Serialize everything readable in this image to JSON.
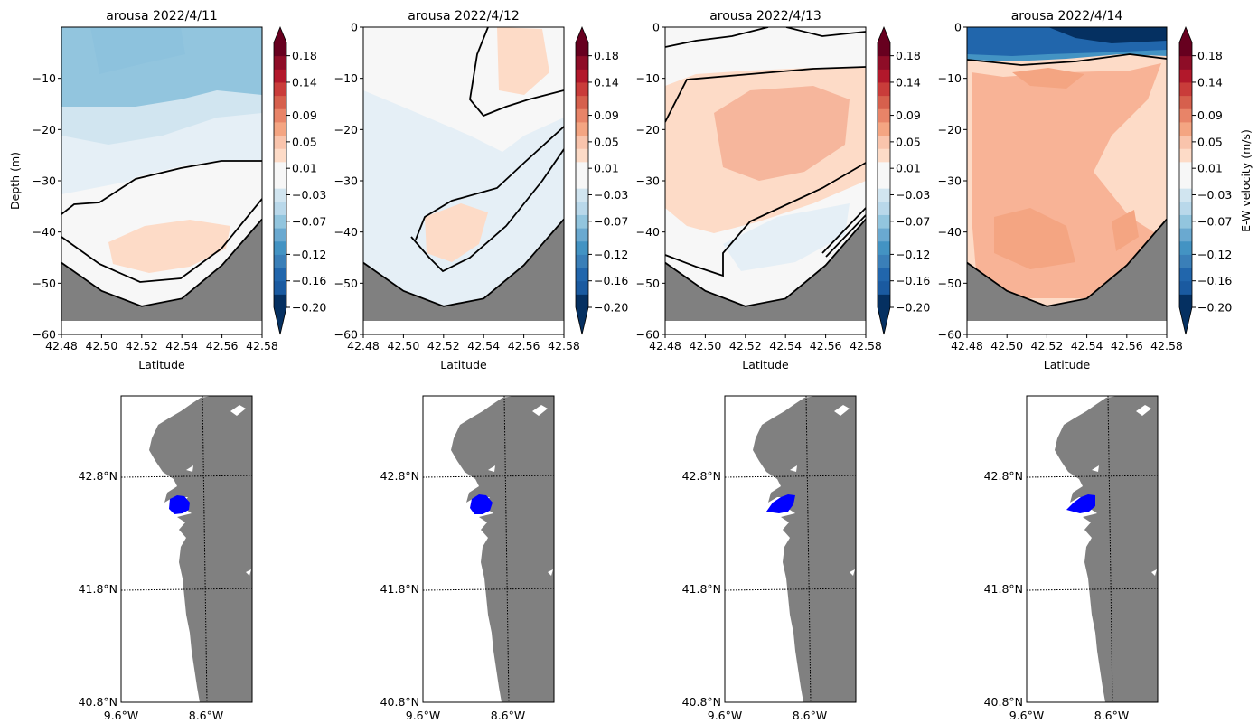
{
  "chart_data": [
    {
      "type": "heatmap",
      "title": "arousa 2022/4/11",
      "xlabel": "Latitude",
      "ylabel": "Depth (m)",
      "xlim": [
        42.48,
        42.58
      ],
      "ylim": [
        -60,
        0
      ],
      "xticks": [
        "42.48",
        "42.50",
        "42.52",
        "42.54",
        "42.56",
        "42.58"
      ],
      "yticks": [
        "−10",
        "−20",
        "−30",
        "−40",
        "−50",
        "−60"
      ],
      "colorbar": {
        "ticks": [
          "0.18",
          "0.14",
          "0.09",
          "0.05",
          "0.01",
          "−0.03",
          "−0.07",
          "−0.12",
          "−0.16",
          "−0.20"
        ],
        "range": [
          -0.2,
          0.2
        ]
      },
      "bathymetry": {
        "x": [
          42.48,
          42.5,
          42.52,
          42.54,
          42.56,
          42.58
        ],
        "depth": [
          -46,
          -51.5,
          -54.5,
          -53,
          -46.5,
          -37.5
        ]
      }
    },
    {
      "type": "heatmap",
      "title": "arousa 2022/4/12",
      "xlabel": "Latitude",
      "ylabel": "",
      "xlim": [
        42.48,
        42.58
      ],
      "ylim": [
        -60,
        0
      ],
      "xticks": [
        "42.48",
        "42.50",
        "42.52",
        "42.54",
        "42.56",
        "42.58"
      ],
      "yticks": [
        "0",
        "−10",
        "−20",
        "−30",
        "−40",
        "−50",
        "−60"
      ],
      "colorbar": {
        "ticks": [
          "0.18",
          "0.14",
          "0.09",
          "0.05",
          "0.01",
          "−0.03",
          "−0.07",
          "−0.12",
          "−0.16",
          "−0.20"
        ],
        "range": [
          -0.2,
          0.2
        ]
      },
      "bathymetry": {
        "x": [
          42.48,
          42.5,
          42.52,
          42.54,
          42.56,
          42.58
        ],
        "depth": [
          -46,
          -51.5,
          -54.5,
          -53,
          -46.5,
          -37.5
        ]
      }
    },
    {
      "type": "heatmap",
      "title": "arousa 2022/4/13",
      "xlabel": "Latitude",
      "ylabel": "",
      "xlim": [
        42.48,
        42.58
      ],
      "ylim": [
        -60,
        0
      ],
      "xticks": [
        "42.48",
        "42.50",
        "42.52",
        "42.54",
        "42.56",
        "42.58"
      ],
      "yticks": [
        "0",
        "−10",
        "−20",
        "−30",
        "−40",
        "−50",
        "−60"
      ],
      "colorbar": {
        "ticks": [
          "0.18",
          "0.14",
          "0.09",
          "0.05",
          "0.01",
          "−0.03",
          "−0.07",
          "−0.12",
          "−0.16",
          "−0.20"
        ],
        "range": [
          -0.2,
          0.2
        ]
      },
      "bathymetry": {
        "x": [
          42.48,
          42.5,
          42.52,
          42.54,
          42.56,
          42.58
        ],
        "depth": [
          -46,
          -51.5,
          -54.5,
          -53,
          -46.5,
          -37.5
        ]
      }
    },
    {
      "type": "heatmap",
      "title": "arousa 2022/4/14",
      "xlabel": "Latitude",
      "ylabel": "",
      "cbar_label": "E-W velocity (m/s)",
      "xlim": [
        42.48,
        42.58
      ],
      "ylim": [
        -60,
        0
      ],
      "xticks": [
        "42.48",
        "42.50",
        "42.52",
        "42.54",
        "42.56",
        "42.58"
      ],
      "yticks": [
        "0",
        "−10",
        "−20",
        "−30",
        "−40",
        "−50",
        "−60"
      ],
      "colorbar": {
        "ticks": [
          "0.18",
          "0.14",
          "0.09",
          "0.05",
          "0.01",
          "−0.03",
          "−0.07",
          "−0.12",
          "−0.16",
          "−0.20"
        ],
        "range": [
          -0.2,
          0.2
        ]
      },
      "bathymetry": {
        "x": [
          42.48,
          42.5,
          42.52,
          42.54,
          42.56,
          42.58
        ],
        "depth": [
          -46,
          -51.5,
          -54.5,
          -53,
          -46.5,
          -37.5
        ]
      }
    }
  ],
  "maps": {
    "lat_labels": [
      "42.8°N",
      "41.8°N",
      "40.8°N"
    ],
    "lon_labels": [
      "9.6°W",
      "8.6°W"
    ],
    "land_color": "#808080",
    "highlight_color": "#0000ff"
  },
  "colors": {
    "positive": [
      "#fddbc7",
      "#f4a582",
      "#d6604d",
      "#b2182b",
      "#67001f"
    ],
    "negative": [
      "#d1e5f0",
      "#92c5de",
      "#4393c3",
      "#2166ac",
      "#053061"
    ],
    "neutral": "#f7f7f7",
    "bathymetry": "#808080"
  }
}
